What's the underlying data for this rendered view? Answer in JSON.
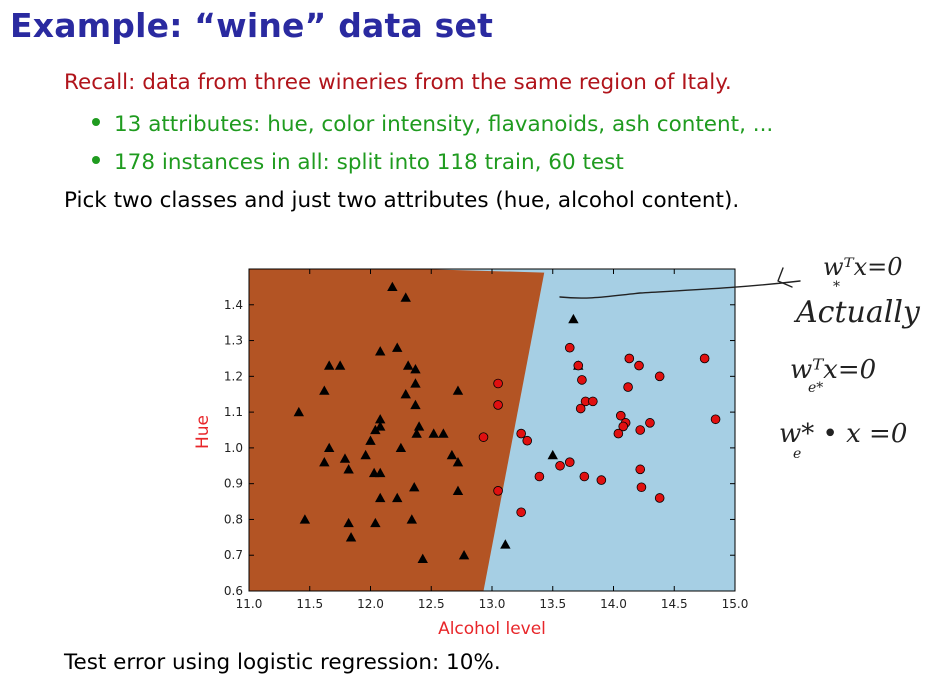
{
  "slide": {
    "title": "Example: “wine” data set",
    "recall": "Recall: data from three wineries from the same region of Italy.",
    "bullets": [
      "13 attributes: hue, color intensity, flavanoids, ash content, ...",
      "178 instances in all: split into 118 train, 60 test"
    ],
    "pick": "Pick two classes and just two attributes (hue, alcohol content).",
    "test_error": "Test error using logistic regression: 10%."
  },
  "annotations": {
    "line1": "wᵀx=0",
    "line1_sub": "*",
    "line2": "Actually",
    "line3": "wᵀx=0",
    "line3_sub": "e*",
    "line4": "w* • x =0",
    "line4_sub": "e"
  },
  "chart_data": {
    "type": "scatter",
    "xlabel": "Alcohol level",
    "ylabel": "Hue",
    "xlim": [
      11.0,
      15.0
    ],
    "ylim": [
      0.6,
      1.5
    ],
    "xticks": [
      "11.0",
      "11.5",
      "12.0",
      "12.5",
      "13.0",
      "13.5",
      "14.0",
      "14.5",
      "15.0"
    ],
    "yticks": [
      "0.6",
      "0.7",
      "0.8",
      "0.9",
      "1.0",
      "1.1",
      "1.2",
      "1.3",
      "1.4"
    ],
    "colors": {
      "region_triangle": "#b35424",
      "region_circle": "#a6cfe4",
      "circle": "#e01010",
      "triangle": "#000000"
    },
    "boundary": [
      [
        13.43,
        1.49
      ],
      [
        12.93,
        0.6
      ]
    ],
    "series": [
      {
        "marker": "triangle",
        "points": [
          [
            12.18,
            1.45
          ],
          [
            12.29,
            1.42
          ],
          [
            12.22,
            1.28
          ],
          [
            12.08,
            1.27
          ],
          [
            11.66,
            1.23
          ],
          [
            11.75,
            1.23
          ],
          [
            12.31,
            1.23
          ],
          [
            12.37,
            1.22
          ],
          [
            12.37,
            1.18
          ],
          [
            11.62,
            1.16
          ],
          [
            12.29,
            1.15
          ],
          [
            12.72,
            1.16
          ],
          [
            12.37,
            1.12
          ],
          [
            11.41,
            1.1
          ],
          [
            12.08,
            1.08
          ],
          [
            12.08,
            1.06
          ],
          [
            12.04,
            1.05
          ],
          [
            12.4,
            1.06
          ],
          [
            12.38,
            1.04
          ],
          [
            12.52,
            1.04
          ],
          [
            12.6,
            1.04
          ],
          [
            11.66,
            1.0
          ],
          [
            12.0,
            1.02
          ],
          [
            11.96,
            0.98
          ],
          [
            12.25,
            1.0
          ],
          [
            12.67,
            0.98
          ],
          [
            12.72,
            0.96
          ],
          [
            11.79,
            0.97
          ],
          [
            11.62,
            0.96
          ],
          [
            11.82,
            0.94
          ],
          [
            12.03,
            0.93
          ],
          [
            12.08,
            0.93
          ],
          [
            12.36,
            0.89
          ],
          [
            12.08,
            0.86
          ],
          [
            12.22,
            0.86
          ],
          [
            12.72,
            0.88
          ],
          [
            11.46,
            0.8
          ],
          [
            11.82,
            0.79
          ],
          [
            12.04,
            0.79
          ],
          [
            12.34,
            0.8
          ],
          [
            11.84,
            0.75
          ],
          [
            12.43,
            0.69
          ],
          [
            12.77,
            0.7
          ],
          [
            13.67,
            1.36
          ],
          [
            13.71,
            1.23
          ],
          [
            13.5,
            0.98
          ],
          [
            13.11,
            0.73
          ]
        ]
      },
      {
        "marker": "circle",
        "points": [
          [
            13.64,
            1.28
          ],
          [
            13.71,
            1.23
          ],
          [
            14.13,
            1.25
          ],
          [
            14.21,
            1.23
          ],
          [
            14.75,
            1.25
          ],
          [
            14.38,
            1.2
          ],
          [
            13.74,
            1.19
          ],
          [
            13.05,
            1.18
          ],
          [
            14.12,
            1.17
          ],
          [
            13.77,
            1.13
          ],
          [
            13.83,
            1.13
          ],
          [
            13.73,
            1.11
          ],
          [
            13.05,
            1.12
          ],
          [
            14.06,
            1.09
          ],
          [
            14.84,
            1.08
          ],
          [
            14.3,
            1.07
          ],
          [
            14.1,
            1.07
          ],
          [
            14.08,
            1.06
          ],
          [
            14.04,
            1.04
          ],
          [
            14.22,
            1.05
          ],
          [
            12.93,
            1.03
          ],
          [
            13.24,
            1.04
          ],
          [
            13.29,
            1.02
          ],
          [
            13.64,
            0.96
          ],
          [
            13.56,
            0.95
          ],
          [
            14.22,
            0.94
          ],
          [
            13.39,
            0.92
          ],
          [
            13.76,
            0.92
          ],
          [
            13.9,
            0.91
          ],
          [
            14.23,
            0.89
          ],
          [
            13.05,
            0.88
          ],
          [
            14.38,
            0.86
          ],
          [
            13.24,
            0.82
          ]
        ]
      }
    ]
  }
}
